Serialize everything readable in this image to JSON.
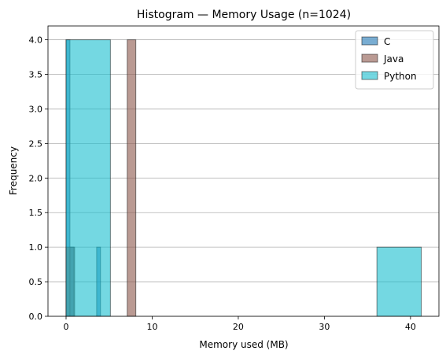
{
  "chart_data": {
    "type": "bar",
    "title": "Histogram — Memory Usage (n=1024)",
    "xlabel": "Memory used (MB)",
    "ylabel": "Frequency",
    "xlim": [
      -2.1,
      43.3
    ],
    "ylim": [
      0,
      4.2
    ],
    "xticks": [
      0,
      10,
      20,
      30,
      40
    ],
    "xtick_labels": [
      "0",
      "10",
      "20",
      "30",
      "40"
    ],
    "yticks": [
      0,
      0.5,
      1.0,
      1.5,
      2.0,
      2.5,
      3.0,
      3.5,
      4.0
    ],
    "ytick_labels": [
      "0.0",
      "0.5",
      "1.0",
      "1.5",
      "2.0",
      "2.5",
      "3.0",
      "3.5",
      "4.0"
    ],
    "grid": "horizontal",
    "legend_position": "top-right",
    "series": [
      {
        "name": "C",
        "color": "#1f77b4",
        "bins": [
          {
            "x0": 0.0,
            "x1": 0.45,
            "count": 4
          },
          {
            "x0": 0.45,
            "x1": 0.9,
            "count": 1
          },
          {
            "x0": 3.55,
            "x1": 4.0,
            "count": 1
          }
        ]
      },
      {
        "name": "Java",
        "color": "#8c564b",
        "bins": [
          {
            "x0": 0.0,
            "x1": 1.0,
            "count": 1
          },
          {
            "x0": 7.1,
            "x1": 8.1,
            "count": 4
          }
        ]
      },
      {
        "name": "Python",
        "color": "#17becf",
        "bins": [
          {
            "x0": 0.0,
            "x1": 5.15,
            "count": 4
          },
          {
            "x0": 36.1,
            "x1": 41.25,
            "count": 1
          }
        ]
      }
    ]
  }
}
